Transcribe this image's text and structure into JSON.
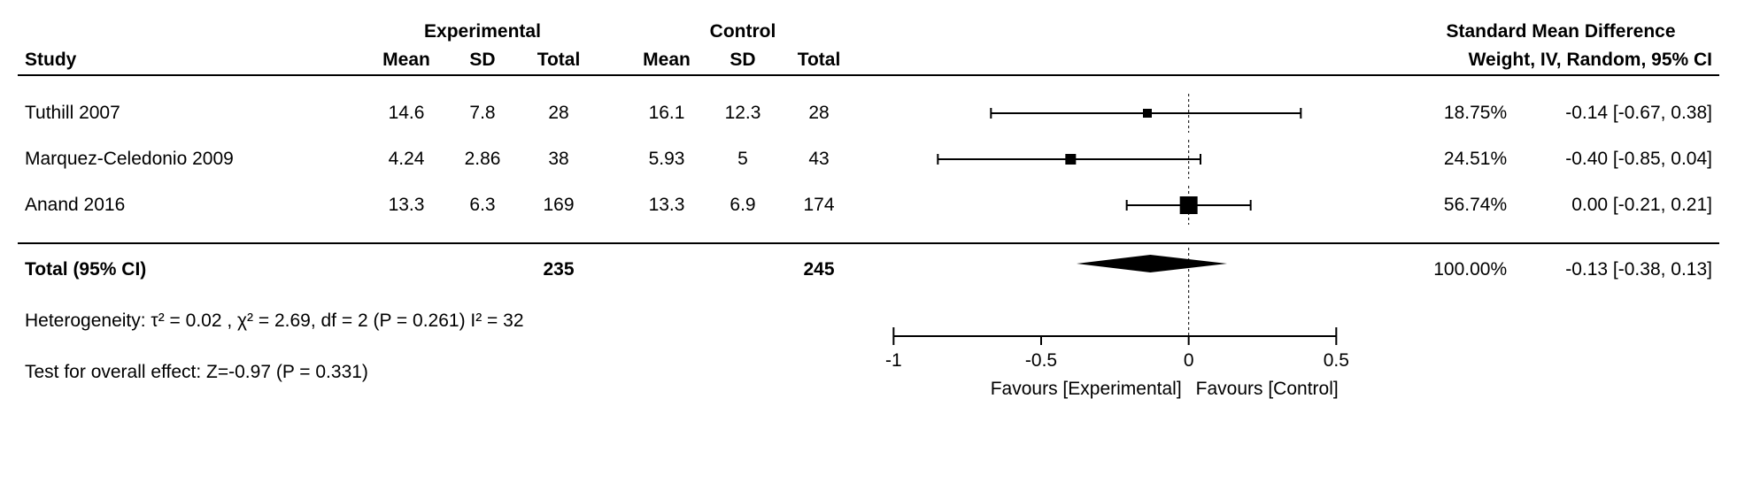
{
  "type": "forest-plot",
  "title_smd": "Standard Mean Difference",
  "title_method": "Weight, IV, Random, 95% CI",
  "group_headers": {
    "exp": "Experimental",
    "ctrl": "Control"
  },
  "col_headers": {
    "study": "Study",
    "mean": "Mean",
    "sd": "SD",
    "total": "Total"
  },
  "plot": {
    "xlim": [
      -1.1,
      0.7
    ],
    "ticks": [
      -1,
      -0.5,
      0,
      0.5
    ],
    "tick_labels": [
      "-1",
      "-0.5",
      "0",
      "0.5"
    ],
    "null_line": 0,
    "favours_left": "Favours [Experimental]",
    "favours_right": "Favours [Control]",
    "line_color": "#000000",
    "marker_color": "#000000",
    "diamond_color": "#000000",
    "background": "#ffffff",
    "null_dash": "3,3"
  },
  "studies": [
    {
      "name": "Tuthill 2007",
      "exp_mean": "14.6",
      "exp_sd": "7.8",
      "exp_n": "28",
      "ctrl_mean": "16.1",
      "ctrl_sd": "12.3",
      "ctrl_n": "28",
      "weight": "18.75%",
      "est": -0.14,
      "lo": -0.67,
      "hi": 0.38,
      "ci_text": "-0.14 [-0.67, 0.38]",
      "size": 10
    },
    {
      "name": "Marquez-Celedonio 2009",
      "exp_mean": "4.24",
      "exp_sd": "2.86",
      "exp_n": "38",
      "ctrl_mean": "5.93",
      "ctrl_sd": "5",
      "ctrl_n": "43",
      "weight": "24.51%",
      "est": -0.4,
      "lo": -0.85,
      "hi": 0.04,
      "ci_text": "-0.40 [-0.85, 0.04]",
      "size": 12
    },
    {
      "name": "Anand 2016",
      "exp_mean": "13.3",
      "exp_sd": "6.3",
      "exp_n": "169",
      "ctrl_mean": "13.3",
      "ctrl_sd": "6.9",
      "ctrl_n": "174",
      "weight": "56.74%",
      "est": 0.0,
      "lo": -0.21,
      "hi": 0.21,
      "ci_text": "0.00 [-0.21, 0.21]",
      "size": 20
    }
  ],
  "total": {
    "label": "Total (95% CI)",
    "exp_n": "235",
    "ctrl_n": "245",
    "weight": "100.00%",
    "est": -0.13,
    "lo": -0.38,
    "hi": 0.13,
    "ci_text": "-0.13 [-0.38, 0.13]"
  },
  "heterogeneity": "Heterogeneity: τ² = 0.02 ,  χ² = 2.69, df = 2 (P = 0.261)  I² = 32",
  "overall_test": "Test for overall effect: Z=-0.97 (P = 0.331)"
}
